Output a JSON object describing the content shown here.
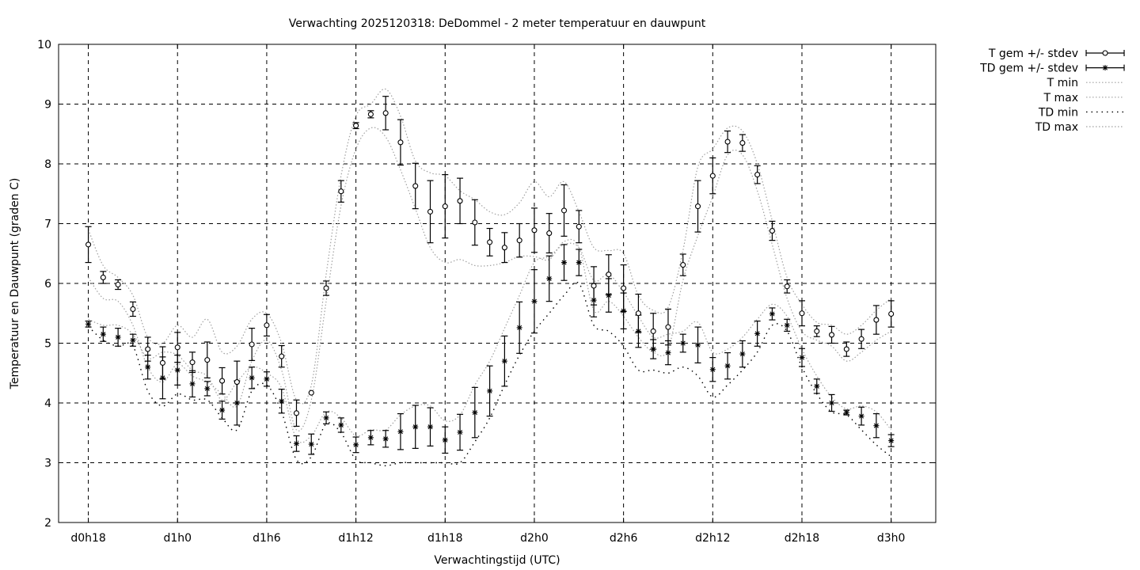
{
  "chart_data": {
    "type": "line",
    "title": "Verwachting 2025120318: DeDommel - 2 meter temperatuur en dauwpunt",
    "xlabel": "Verwachtingstijd (UTC)",
    "ylabel": "Temperatuur en Dauwpunt (graden C)",
    "xlim": [
      16,
      75
    ],
    "ylim": [
      2,
      10
    ],
    "grid": true,
    "legend_position": "outside-top-right",
    "x_ticks": [
      {
        "x": 18,
        "label": "d0h18"
      },
      {
        "x": 24,
        "label": "d1h0"
      },
      {
        "x": 30,
        "label": "d1h6"
      },
      {
        "x": 36,
        "label": "d1h12"
      },
      {
        "x": 42,
        "label": "d1h18"
      },
      {
        "x": 48,
        "label": "d2h0"
      },
      {
        "x": 54,
        "label": "d2h6"
      },
      {
        "x": 60,
        "label": "d2h12"
      },
      {
        "x": 66,
        "label": "d2h18"
      },
      {
        "x": 72,
        "label": "d3h0"
      }
    ],
    "y_ticks": [
      {
        "y": 2,
        "label": "2"
      },
      {
        "y": 3,
        "label": "3"
      },
      {
        "y": 4,
        "label": "4"
      },
      {
        "y": 5,
        "label": "5"
      },
      {
        "y": 6,
        "label": "6"
      },
      {
        "y": 7,
        "label": "7"
      },
      {
        "y": 8,
        "label": "8"
      },
      {
        "y": 9,
        "label": "9"
      },
      {
        "y": 10,
        "label": "10"
      }
    ],
    "x": [
      18,
      19,
      20,
      21,
      22,
      23,
      24,
      25,
      26,
      27,
      28,
      29,
      30,
      31,
      32,
      33,
      34,
      35,
      36,
      37,
      38,
      39,
      40,
      41,
      42,
      43,
      44,
      45,
      46,
      47,
      48,
      49,
      50,
      51,
      52,
      53,
      54,
      55,
      56,
      57,
      58,
      59,
      60,
      61,
      62,
      63,
      64,
      65,
      66,
      67,
      68,
      69,
      70,
      71,
      72
    ],
    "series": [
      {
        "name": "T gem +/- stdev",
        "marker": "circle",
        "values": [
          6.65,
          6.1,
          5.98,
          5.57,
          4.9,
          4.67,
          4.93,
          4.68,
          4.72,
          4.37,
          4.35,
          4.98,
          5.3,
          4.78,
          3.83,
          4.17,
          5.92,
          7.54,
          8.64,
          8.83,
          8.85,
          8.36,
          7.63,
          7.2,
          7.29,
          7.38,
          7.02,
          6.69,
          6.6,
          6.72,
          6.89,
          6.84,
          7.22,
          6.95,
          5.96,
          6.15,
          5.92,
          5.5,
          5.2,
          5.27,
          6.31,
          7.29,
          7.8,
          8.37,
          8.35,
          7.82,
          6.88,
          5.95,
          5.5,
          5.2,
          5.14,
          4.9,
          5.07,
          5.39,
          5.49
        ],
        "stdev": [
          0.3,
          0.1,
          0.08,
          0.12,
          0.2,
          0.27,
          0.25,
          0.17,
          0.3,
          0.22,
          0.35,
          0.27,
          0.18,
          0.18,
          0.22,
          0.0,
          0.12,
          0.18,
          0.05,
          0.06,
          0.28,
          0.38,
          0.38,
          0.52,
          0.53,
          0.38,
          0.38,
          0.23,
          0.25,
          0.28,
          0.37,
          0.33,
          0.43,
          0.27,
          0.32,
          0.33,
          0.39,
          0.32,
          0.3,
          0.3,
          0.18,
          0.43,
          0.3,
          0.18,
          0.14,
          0.15,
          0.16,
          0.11,
          0.21,
          0.09,
          0.14,
          0.12,
          0.16,
          0.24,
          0.22
        ]
      },
      {
        "name": "TD gem +/- stdev",
        "marker": "star",
        "values": [
          5.32,
          5.15,
          5.1,
          5.05,
          4.6,
          4.42,
          4.55,
          4.32,
          4.24,
          3.88,
          4.0,
          4.42,
          4.4,
          4.03,
          3.32,
          3.31,
          3.75,
          3.63,
          3.3,
          3.42,
          3.4,
          3.52,
          3.6,
          3.6,
          3.38,
          3.51,
          3.84,
          4.2,
          4.7,
          5.26,
          5.7,
          6.08,
          6.35,
          6.35,
          5.72,
          5.8,
          5.54,
          5.2,
          4.9,
          4.84,
          5.0,
          4.97,
          4.56,
          4.62,
          4.82,
          5.16,
          5.49,
          5.3,
          4.76,
          4.28,
          4.0,
          3.84,
          3.78,
          3.62,
          3.37
        ],
        "stdev": [
          0.05,
          0.12,
          0.15,
          0.1,
          0.2,
          0.35,
          0.25,
          0.22,
          0.12,
          0.15,
          0.37,
          0.18,
          0.12,
          0.2,
          0.13,
          0.17,
          0.1,
          0.12,
          0.13,
          0.12,
          0.14,
          0.3,
          0.36,
          0.32,
          0.22,
          0.3,
          0.42,
          0.42,
          0.42,
          0.43,
          0.53,
          0.38,
          0.3,
          0.22,
          0.28,
          0.28,
          0.3,
          0.27,
          0.16,
          0.2,
          0.15,
          0.3,
          0.2,
          0.22,
          0.22,
          0.21,
          0.1,
          0.1,
          0.15,
          0.12,
          0.14,
          0.04,
          0.15,
          0.2,
          0.1
        ]
      },
      {
        "name": "T min",
        "style": "env",
        "values": [
          6.1,
          5.75,
          5.7,
          5.3,
          4.6,
          4.35,
          4.65,
          4.45,
          4.35,
          4.15,
          3.95,
          4.7,
          5.05,
          4.55,
          3.55,
          4.05,
          5.7,
          7.3,
          8.25,
          8.6,
          8.45,
          7.9,
          7.25,
          6.6,
          6.35,
          6.4,
          6.3,
          6.3,
          6.35,
          6.45,
          6.45,
          6.4,
          6.7,
          6.6,
          5.55,
          5.7,
          5.45,
          5.1,
          4.85,
          4.9,
          6.05,
          6.8,
          7.45,
          8.15,
          8.15,
          7.55,
          6.65,
          5.75,
          5.2,
          5.05,
          4.95,
          4.7,
          4.85,
          5.05,
          5.2
        ]
      },
      {
        "name": "T max",
        "style": "env",
        "values": [
          6.9,
          6.3,
          6.1,
          5.8,
          5.1,
          5.0,
          5.3,
          5.1,
          5.4,
          4.85,
          4.95,
          5.4,
          5.5,
          5.0,
          4.05,
          4.3,
          6.15,
          7.8,
          8.8,
          9.0,
          9.25,
          8.8,
          8.05,
          7.85,
          7.8,
          7.55,
          7.4,
          7.2,
          7.15,
          7.35,
          7.7,
          7.45,
          7.7,
          7.2,
          6.6,
          6.55,
          6.5,
          5.8,
          5.55,
          5.6,
          6.55,
          7.95,
          8.25,
          8.6,
          8.55,
          8.0,
          7.05,
          6.1,
          5.65,
          5.35,
          5.3,
          5.15,
          5.3,
          5.55,
          5.75
        ]
      },
      {
        "name": "TD min",
        "style": "env-td-min",
        "values": [
          5.28,
          5.05,
          4.95,
          4.95,
          4.2,
          3.95,
          4.15,
          4.05,
          4.05,
          3.75,
          3.55,
          4.2,
          4.3,
          3.85,
          3.05,
          3.1,
          3.65,
          3.5,
          3.05,
          3.0,
          2.95,
          3.0,
          3.0,
          3.0,
          3.0,
          3.0,
          3.35,
          3.75,
          4.3,
          4.8,
          5.2,
          5.5,
          5.8,
          6.0,
          5.3,
          5.2,
          4.95,
          4.55,
          4.55,
          4.5,
          4.6,
          4.45,
          4.1,
          4.3,
          4.55,
          4.85,
          5.3,
          5.2,
          4.6,
          4.15,
          3.85,
          3.8,
          3.55,
          3.3,
          3.1
        ]
      },
      {
        "name": "TD max",
        "style": "env",
        "values": [
          5.4,
          5.3,
          5.3,
          5.15,
          4.75,
          4.85,
          4.8,
          4.55,
          4.45,
          4.05,
          4.35,
          4.6,
          4.5,
          4.25,
          3.4,
          3.45,
          3.85,
          3.75,
          3.45,
          3.55,
          3.55,
          3.8,
          3.95,
          3.95,
          3.7,
          3.8,
          4.3,
          4.7,
          5.25,
          5.8,
          6.35,
          6.45,
          6.65,
          6.6,
          6.05,
          6.15,
          5.85,
          5.45,
          5.1,
          5.15,
          5.2,
          5.35,
          4.85,
          4.9,
          5.1,
          5.4,
          5.65,
          5.45,
          4.9,
          4.45,
          4.1,
          3.9,
          3.95,
          3.85,
          3.55
        ]
      }
    ]
  }
}
